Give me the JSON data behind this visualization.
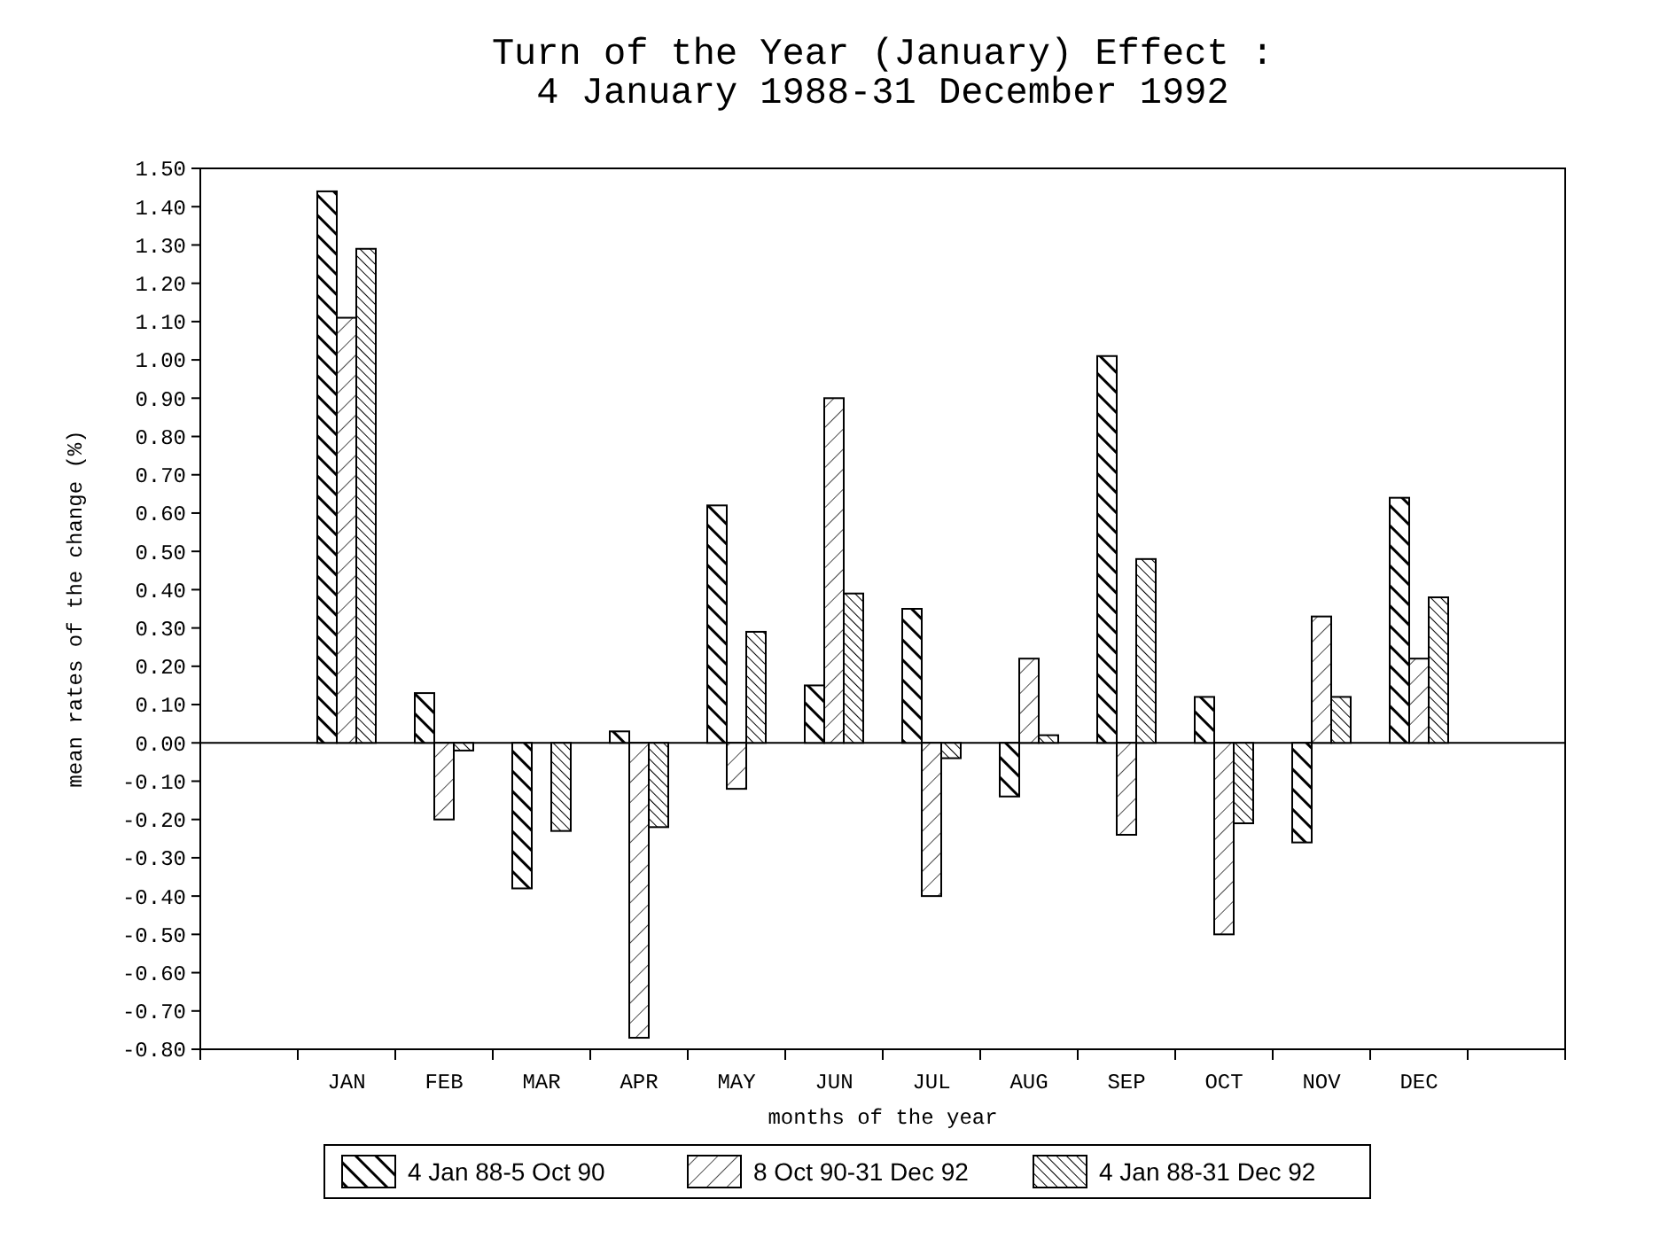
{
  "chart_data": {
    "type": "bar",
    "title": "Turn of the Year (January) Effect :\n4 January 1988-31 December 1992",
    "xlabel": "months of the year",
    "ylabel": "mean rates of the change (%)",
    "categories": [
      null,
      "JAN",
      "FEB",
      "MAR",
      "APR",
      "MAY",
      "JUN",
      "JUL",
      "AUG",
      "SEP",
      "OCT",
      "NOV",
      "DEC",
      null
    ],
    "series": [
      {
        "name": "4 Jan 88-5 Oct 90",
        "color": "#000000",
        "values": [
          null,
          1.44,
          0.13,
          -0.38,
          0.03,
          0.62,
          0.15,
          0.35,
          -0.14,
          1.01,
          0.12,
          -0.26,
          0.64,
          null
        ]
      },
      {
        "name": "8 Oct 90-31 Dec 92",
        "color": "#000000",
        "values": [
          null,
          1.11,
          -0.2,
          null,
          -0.77,
          -0.12,
          0.9,
          -0.4,
          0.22,
          -0.24,
          -0.5,
          0.33,
          0.22,
          null
        ]
      },
      {
        "name": "4 Jan 88-31 Dec 92",
        "color": "#000000",
        "values": [
          null,
          1.29,
          -0.02,
          -0.23,
          -0.22,
          0.29,
          0.39,
          -0.04,
          0.02,
          0.48,
          -0.21,
          0.12,
          0.38,
          null
        ]
      }
    ],
    "ylim": [
      -0.8,
      1.5
    ],
    "yticks": [
      {
        "value": -0.8,
        "label": "-0.80"
      },
      {
        "value": -0.7,
        "label": "-0.70"
      },
      {
        "value": -0.6,
        "label": "-0.60"
      },
      {
        "value": -0.5,
        "label": "-0.50"
      },
      {
        "value": -0.4,
        "label": "-0.40"
      },
      {
        "value": -0.3,
        "label": "-0.30"
      },
      {
        "value": -0.2,
        "label": "-0.20"
      },
      {
        "value": -0.1,
        "label": "-0.10"
      },
      {
        "value": 0,
        "label": "0.00"
      },
      {
        "value": 0.1,
        "label": "0.10"
      },
      {
        "value": 0.2,
        "label": "0.20"
      },
      {
        "value": 0.3,
        "label": "0.30"
      },
      {
        "value": 0.4,
        "label": "0.40"
      },
      {
        "value": 0.5,
        "label": "0.50"
      },
      {
        "value": 0.6,
        "label": "0.60"
      },
      {
        "value": 0.7,
        "label": "0.70"
      },
      {
        "value": 0.8,
        "label": "0.80"
      },
      {
        "value": 0.9,
        "label": "0.90"
      },
      {
        "value": 1.0,
        "label": "1.00"
      },
      {
        "value": 1.1,
        "label": "1.10"
      },
      {
        "value": 1.2,
        "label": "1.20"
      },
      {
        "value": 1.3,
        "label": "1.30"
      },
      {
        "value": 1.4,
        "label": "1.40"
      },
      {
        "value": 1.5,
        "label": "1.50"
      }
    ],
    "legend": "bottom"
  }
}
